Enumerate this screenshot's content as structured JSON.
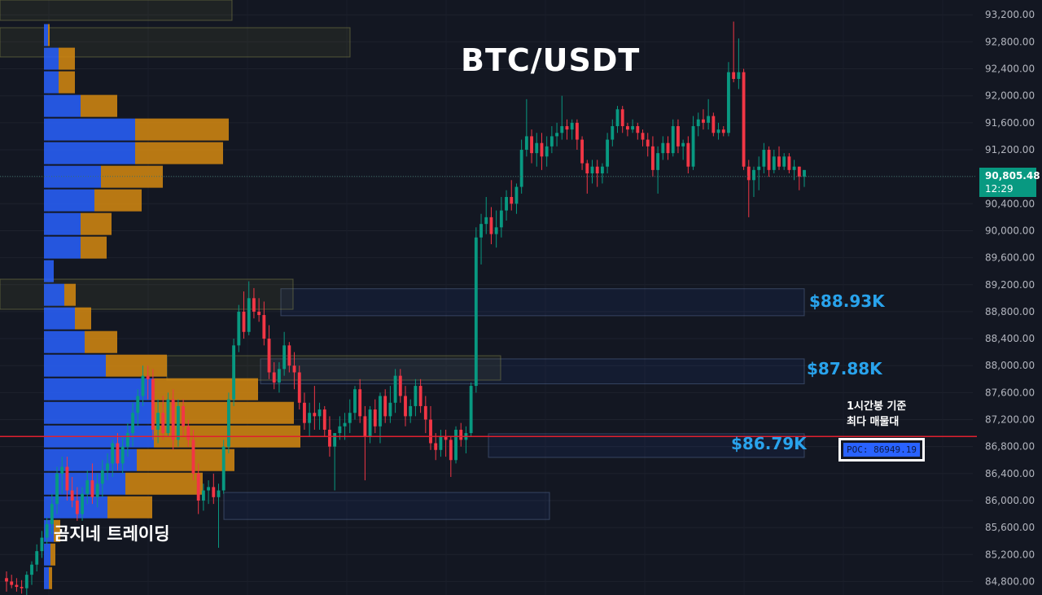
{
  "title": "BTC/USDT",
  "brand": "곰지네 트레이딩",
  "annotation": {
    "line1": "1시간봉 기준",
    "line2": "최다 매물대"
  },
  "poc": {
    "label": "POC: 86949.19",
    "price": 86949.19
  },
  "current_price": {
    "label": "90,805.48",
    "timer": "12:29",
    "price": 90805.48
  },
  "zones": [
    {
      "label": "$88.93K",
      "low": 88740,
      "high": 89140
    },
    {
      "label": "$87.88K",
      "low": 87730,
      "high": 88100
    },
    {
      "label": "$86.79K",
      "low": 86640,
      "high": 86990
    },
    {
      "label": "",
      "low": 85720,
      "high": 86120
    }
  ],
  "colors": {
    "background": "#131722",
    "up": "#089981",
    "down": "#f23645",
    "volume_buy": "#2962ff",
    "volume_sell": "#d68910",
    "zone_label": "#29a3ec",
    "poc_line": "#e0202f"
  },
  "chart_data": {
    "type": "candlestick",
    "title": "BTC/USDT",
    "timeframe_note": "1시간봉 기준",
    "y_axis": {
      "side": "right",
      "ticks": [
        "93,200.00",
        "92,800.00",
        "92,400.00",
        "92,000.00",
        "91,600.00",
        "91,200.00",
        "90,800.00",
        "90,400.00",
        "90,000.00",
        "89,600.00",
        "89,200.00",
        "88,800.00",
        "88,400.00",
        "88,000.00",
        "87,600.00",
        "87,200.00",
        "86,800.00",
        "86,400.00",
        "86,000.00",
        "85,600.00",
        "85,200.00",
        "84,800.00"
      ],
      "range": [
        84600,
        93420
      ]
    },
    "volume_profile": {
      "price_step": 350,
      "bins": [
        {
          "price": 92900,
          "buy": 5,
          "sell": 2
        },
        {
          "price": 92550,
          "buy": 18,
          "sell": 20
        },
        {
          "price": 92200,
          "buy": 18,
          "sell": 20
        },
        {
          "price": 91850,
          "buy": 45,
          "sell": 45
        },
        {
          "price": 91500,
          "buy": 112,
          "sell": 115
        },
        {
          "price": 91150,
          "buy": 112,
          "sell": 108
        },
        {
          "price": 90800,
          "buy": 70,
          "sell": 76
        },
        {
          "price": 90450,
          "buy": 62,
          "sell": 58
        },
        {
          "price": 90100,
          "buy": 45,
          "sell": 38
        },
        {
          "price": 89750,
          "buy": 45,
          "sell": 32
        },
        {
          "price": 89400,
          "buy": 12,
          "sell": 0
        },
        {
          "price": 89050,
          "buy": 25,
          "sell": 14
        },
        {
          "price": 88700,
          "buy": 38,
          "sell": 20
        },
        {
          "price": 88350,
          "buy": 50,
          "sell": 40
        },
        {
          "price": 88000,
          "buy": 76,
          "sell": 75
        },
        {
          "price": 87650,
          "buy": 135,
          "sell": 128
        },
        {
          "price": 87300,
          "buy": 135,
          "sell": 172
        },
        {
          "price": 86950,
          "buy": 135,
          "sell": 180
        },
        {
          "price": 86600,
          "buy": 114,
          "sell": 120
        },
        {
          "price": 86250,
          "buy": 100,
          "sell": 95
        },
        {
          "price": 85900,
          "buy": 78,
          "sell": 55
        },
        {
          "price": 85550,
          "buy": 12,
          "sell": 8
        },
        {
          "price": 85200,
          "buy": 8,
          "sell": 6
        },
        {
          "price": 84850,
          "buy": 6,
          "sell": 4
        }
      ]
    },
    "candles": [
      {
        "o": 84850,
        "h": 84950,
        "l": 84650,
        "c": 84800
      },
      {
        "o": 84800,
        "h": 84900,
        "l": 84700,
        "c": 84750
      },
      {
        "o": 84750,
        "h": 84850,
        "l": 84650,
        "c": 84720
      },
      {
        "o": 84720,
        "h": 84820,
        "l": 84620,
        "c": 84700
      },
      {
        "o": 84700,
        "h": 84950,
        "l": 84600,
        "c": 84900
      },
      {
        "o": 84900,
        "h": 85100,
        "l": 84750,
        "c": 85050
      },
      {
        "o": 85050,
        "h": 85350,
        "l": 84950,
        "c": 85250
      },
      {
        "o": 85250,
        "h": 85550,
        "l": 85150,
        "c": 85450
      },
      {
        "o": 85450,
        "h": 85750,
        "l": 85350,
        "c": 85650
      },
      {
        "o": 85650,
        "h": 86100,
        "l": 85500,
        "c": 85950
      },
      {
        "o": 85950,
        "h": 86500,
        "l": 85800,
        "c": 86400
      },
      {
        "o": 86400,
        "h": 86650,
        "l": 86100,
        "c": 86500
      },
      {
        "o": 86500,
        "h": 86650,
        "l": 86000,
        "c": 86150
      },
      {
        "o": 86150,
        "h": 86350,
        "l": 85900,
        "c": 86000
      },
      {
        "o": 86000,
        "h": 86200,
        "l": 85700,
        "c": 85800
      },
      {
        "o": 85800,
        "h": 86200,
        "l": 85700,
        "c": 86100
      },
      {
        "o": 86100,
        "h": 86450,
        "l": 85950,
        "c": 86300
      },
      {
        "o": 86300,
        "h": 86550,
        "l": 85950,
        "c": 86050
      },
      {
        "o": 86050,
        "h": 86400,
        "l": 85900,
        "c": 86250
      },
      {
        "o": 86250,
        "h": 86600,
        "l": 86050,
        "c": 86450
      },
      {
        "o": 86450,
        "h": 86700,
        "l": 86300,
        "c": 86550
      },
      {
        "o": 86550,
        "h": 86900,
        "l": 86350,
        "c": 86850
      },
      {
        "o": 86850,
        "h": 87000,
        "l": 86450,
        "c": 86550
      },
      {
        "o": 86550,
        "h": 86950,
        "l": 86400,
        "c": 86800
      },
      {
        "o": 86800,
        "h": 87150,
        "l": 86650,
        "c": 87000
      },
      {
        "o": 87000,
        "h": 87450,
        "l": 86800,
        "c": 87300
      },
      {
        "o": 87300,
        "h": 87650,
        "l": 87100,
        "c": 87550
      },
      {
        "o": 87550,
        "h": 88000,
        "l": 87400,
        "c": 87850
      },
      {
        "o": 87850,
        "h": 88000,
        "l": 87500,
        "c": 87800
      },
      {
        "o": 87800,
        "h": 87950,
        "l": 86900,
        "c": 87050
      },
      {
        "o": 87050,
        "h": 87500,
        "l": 86850,
        "c": 87300
      },
      {
        "o": 87300,
        "h": 87550,
        "l": 86900,
        "c": 87000
      },
      {
        "o": 87000,
        "h": 87600,
        "l": 86950,
        "c": 87500
      },
      {
        "o": 87500,
        "h": 87650,
        "l": 86750,
        "c": 86900
      },
      {
        "o": 86900,
        "h": 87500,
        "l": 86800,
        "c": 87400
      },
      {
        "o": 87400,
        "h": 87500,
        "l": 86950,
        "c": 87100
      },
      {
        "o": 87100,
        "h": 87200,
        "l": 86800,
        "c": 86900
      },
      {
        "o": 86900,
        "h": 87050,
        "l": 86300,
        "c": 86400
      },
      {
        "o": 86400,
        "h": 86550,
        "l": 85800,
        "c": 86000
      },
      {
        "o": 86000,
        "h": 86250,
        "l": 85850,
        "c": 86150
      },
      {
        "o": 86150,
        "h": 86300,
        "l": 85950,
        "c": 86200
      },
      {
        "o": 86200,
        "h": 86400,
        "l": 85950,
        "c": 86050
      },
      {
        "o": 86050,
        "h": 86250,
        "l": 85300,
        "c": 86150
      },
      {
        "o": 86150,
        "h": 86900,
        "l": 86100,
        "c": 86800
      },
      {
        "o": 86800,
        "h": 87600,
        "l": 86700,
        "c": 87500
      },
      {
        "o": 87500,
        "h": 88400,
        "l": 87400,
        "c": 88300
      },
      {
        "o": 88300,
        "h": 88900,
        "l": 88200,
        "c": 88800
      },
      {
        "o": 88800,
        "h": 89100,
        "l": 88400,
        "c": 88500
      },
      {
        "o": 88500,
        "h": 89250,
        "l": 88450,
        "c": 89000
      },
      {
        "o": 89000,
        "h": 89150,
        "l": 88700,
        "c": 88800
      },
      {
        "o": 88800,
        "h": 89000,
        "l": 88650,
        "c": 88750
      },
      {
        "o": 88750,
        "h": 88950,
        "l": 88300,
        "c": 88400
      },
      {
        "o": 88400,
        "h": 88600,
        "l": 87800,
        "c": 87900
      },
      {
        "o": 87900,
        "h": 88050,
        "l": 87650,
        "c": 87750
      },
      {
        "o": 87750,
        "h": 88050,
        "l": 87600,
        "c": 87950
      },
      {
        "o": 87950,
        "h": 88500,
        "l": 87850,
        "c": 88300
      },
      {
        "o": 88300,
        "h": 88350,
        "l": 87900,
        "c": 88000
      },
      {
        "o": 88000,
        "h": 88200,
        "l": 87650,
        "c": 87900
      },
      {
        "o": 87900,
        "h": 88000,
        "l": 87350,
        "c": 87450
      },
      {
        "o": 87450,
        "h": 87600,
        "l": 87050,
        "c": 87150
      },
      {
        "o": 87150,
        "h": 87450,
        "l": 86950,
        "c": 87300
      },
      {
        "o": 87300,
        "h": 87700,
        "l": 87050,
        "c": 87250
      },
      {
        "o": 87250,
        "h": 87450,
        "l": 87050,
        "c": 87350
      },
      {
        "o": 87350,
        "h": 87400,
        "l": 86950,
        "c": 87050
      },
      {
        "o": 87050,
        "h": 87250,
        "l": 86650,
        "c": 86800
      },
      {
        "o": 86800,
        "h": 87000,
        "l": 86150,
        "c": 87000
      },
      {
        "o": 87000,
        "h": 87250,
        "l": 86900,
        "c": 87100
      },
      {
        "o": 87100,
        "h": 87300,
        "l": 86900,
        "c": 87150
      },
      {
        "o": 87150,
        "h": 87500,
        "l": 87000,
        "c": 87300
      },
      {
        "o": 87300,
        "h": 87700,
        "l": 87200,
        "c": 87650
      },
      {
        "o": 87650,
        "h": 87800,
        "l": 87150,
        "c": 87250
      },
      {
        "o": 87250,
        "h": 87400,
        "l": 86300,
        "c": 86950
      },
      {
        "o": 86950,
        "h": 87400,
        "l": 86850,
        "c": 87350
      },
      {
        "o": 87350,
        "h": 87500,
        "l": 87000,
        "c": 87100
      },
      {
        "o": 87100,
        "h": 87600,
        "l": 86850,
        "c": 87550
      },
      {
        "o": 87550,
        "h": 87650,
        "l": 87150,
        "c": 87250
      },
      {
        "o": 87250,
        "h": 87700,
        "l": 87150,
        "c": 87450
      },
      {
        "o": 87450,
        "h": 87950,
        "l": 87300,
        "c": 87850
      },
      {
        "o": 87850,
        "h": 87950,
        "l": 87450,
        "c": 87550
      },
      {
        "o": 87550,
        "h": 87700,
        "l": 87100,
        "c": 87250
      },
      {
        "o": 87250,
        "h": 87500,
        "l": 87150,
        "c": 87400
      },
      {
        "o": 87400,
        "h": 87800,
        "l": 87250,
        "c": 87700
      },
      {
        "o": 87700,
        "h": 87800,
        "l": 87300,
        "c": 87400
      },
      {
        "o": 87400,
        "h": 87550,
        "l": 87000,
        "c": 87200
      },
      {
        "o": 87200,
        "h": 87400,
        "l": 86750,
        "c": 86850
      },
      {
        "o": 86850,
        "h": 87000,
        "l": 86600,
        "c": 86750
      },
      {
        "o": 86750,
        "h": 87050,
        "l": 86650,
        "c": 86950
      },
      {
        "o": 86950,
        "h": 87050,
        "l": 86650,
        "c": 86900
      },
      {
        "o": 86900,
        "h": 86950,
        "l": 86350,
        "c": 86600
      },
      {
        "o": 86600,
        "h": 87100,
        "l": 86550,
        "c": 87050
      },
      {
        "o": 87050,
        "h": 87150,
        "l": 86800,
        "c": 86900
      },
      {
        "o": 86900,
        "h": 87100,
        "l": 86700,
        "c": 87000
      },
      {
        "o": 87000,
        "h": 87750,
        "l": 86950,
        "c": 87700
      },
      {
        "o": 87700,
        "h": 90050,
        "l": 87600,
        "c": 89900
      },
      {
        "o": 89900,
        "h": 90250,
        "l": 89500,
        "c": 90100
      },
      {
        "o": 90100,
        "h": 90500,
        "l": 89950,
        "c": 90200
      },
      {
        "o": 90200,
        "h": 90350,
        "l": 89800,
        "c": 89950
      },
      {
        "o": 89950,
        "h": 90300,
        "l": 89750,
        "c": 90050
      },
      {
        "o": 90050,
        "h": 90500,
        "l": 89900,
        "c": 90300
      },
      {
        "o": 90300,
        "h": 90600,
        "l": 90150,
        "c": 90500
      },
      {
        "o": 90500,
        "h": 90750,
        "l": 90300,
        "c": 90400
      },
      {
        "o": 90400,
        "h": 90700,
        "l": 90250,
        "c": 90650
      },
      {
        "o": 90650,
        "h": 91350,
        "l": 90550,
        "c": 91200
      },
      {
        "o": 91200,
        "h": 91950,
        "l": 91100,
        "c": 91400
      },
      {
        "o": 91400,
        "h": 91500,
        "l": 91000,
        "c": 91150
      },
      {
        "o": 91150,
        "h": 91450,
        "l": 90950,
        "c": 91300
      },
      {
        "o": 91300,
        "h": 91450,
        "l": 90900,
        "c": 91100
      },
      {
        "o": 91100,
        "h": 91400,
        "l": 90950,
        "c": 91250
      },
      {
        "o": 91250,
        "h": 91550,
        "l": 91150,
        "c": 91400
      },
      {
        "o": 91400,
        "h": 91600,
        "l": 91250,
        "c": 91450
      },
      {
        "o": 91450,
        "h": 92000,
        "l": 91350,
        "c": 91550
      },
      {
        "o": 91550,
        "h": 91650,
        "l": 91350,
        "c": 91500
      },
      {
        "o": 91500,
        "h": 91650,
        "l": 91350,
        "c": 91600
      },
      {
        "o": 91600,
        "h": 91650,
        "l": 91200,
        "c": 91350
      },
      {
        "o": 91350,
        "h": 91400,
        "l": 90900,
        "c": 91000
      },
      {
        "o": 91000,
        "h": 91050,
        "l": 90550,
        "c": 90850
      },
      {
        "o": 90850,
        "h": 91050,
        "l": 90700,
        "c": 90950
      },
      {
        "o": 90950,
        "h": 91050,
        "l": 90650,
        "c": 90850
      },
      {
        "o": 90850,
        "h": 91000,
        "l": 90700,
        "c": 90950
      },
      {
        "o": 90950,
        "h": 91450,
        "l": 90850,
        "c": 91350
      },
      {
        "o": 91350,
        "h": 91650,
        "l": 91250,
        "c": 91550
      },
      {
        "o": 91550,
        "h": 91850,
        "l": 91450,
        "c": 91800
      },
      {
        "o": 91800,
        "h": 91850,
        "l": 91450,
        "c": 91550
      },
      {
        "o": 91550,
        "h": 91600,
        "l": 91400,
        "c": 91500
      },
      {
        "o": 91500,
        "h": 91650,
        "l": 91450,
        "c": 91550
      },
      {
        "o": 91550,
        "h": 91600,
        "l": 91350,
        "c": 91450
      },
      {
        "o": 91450,
        "h": 91500,
        "l": 91250,
        "c": 91350
      },
      {
        "o": 91350,
        "h": 91450,
        "l": 91100,
        "c": 91250
      },
      {
        "o": 91250,
        "h": 91400,
        "l": 90800,
        "c": 90900
      },
      {
        "o": 90900,
        "h": 91250,
        "l": 90550,
        "c": 91150
      },
      {
        "o": 91150,
        "h": 91400,
        "l": 91050,
        "c": 91300
      },
      {
        "o": 91300,
        "h": 91400,
        "l": 91050,
        "c": 91150
      },
      {
        "o": 91150,
        "h": 91650,
        "l": 91100,
        "c": 91550
      },
      {
        "o": 91550,
        "h": 91650,
        "l": 91150,
        "c": 91250
      },
      {
        "o": 91250,
        "h": 91350,
        "l": 91050,
        "c": 91300
      },
      {
        "o": 91300,
        "h": 91400,
        "l": 90850,
        "c": 90950
      },
      {
        "o": 90950,
        "h": 91700,
        "l": 90900,
        "c": 91550
      },
      {
        "o": 91550,
        "h": 91750,
        "l": 91400,
        "c": 91650
      },
      {
        "o": 91650,
        "h": 91800,
        "l": 91500,
        "c": 91600
      },
      {
        "o": 91600,
        "h": 91950,
        "l": 91500,
        "c": 91700
      },
      {
        "o": 91700,
        "h": 91750,
        "l": 91400,
        "c": 91450
      },
      {
        "o": 91450,
        "h": 91600,
        "l": 91350,
        "c": 91500
      },
      {
        "o": 91500,
        "h": 91550,
        "l": 91400,
        "c": 91450
      },
      {
        "o": 91450,
        "h": 92500,
        "l": 91400,
        "c": 92350
      },
      {
        "o": 92350,
        "h": 93100,
        "l": 92200,
        "c": 92250
      },
      {
        "o": 92250,
        "h": 92850,
        "l": 92100,
        "c": 92350
      },
      {
        "o": 92350,
        "h": 92400,
        "l": 90900,
        "c": 90950
      },
      {
        "o": 90950,
        "h": 91050,
        "l": 90200,
        "c": 90750
      },
      {
        "o": 90750,
        "h": 90950,
        "l": 90500,
        "c": 90900
      },
      {
        "o": 90900,
        "h": 91100,
        "l": 90600,
        "c": 90950
      },
      {
        "o": 90950,
        "h": 91300,
        "l": 90850,
        "c": 91200
      },
      {
        "o": 91200,
        "h": 91250,
        "l": 90800,
        "c": 90900
      },
      {
        "o": 90900,
        "h": 91200,
        "l": 90850,
        "c": 91100
      },
      {
        "o": 91100,
        "h": 91250,
        "l": 90900,
        "c": 90950
      },
      {
        "o": 90950,
        "h": 91150,
        "l": 90900,
        "c": 91100
      },
      {
        "o": 91100,
        "h": 91150,
        "l": 90850,
        "c": 90900
      },
      {
        "o": 90900,
        "h": 91050,
        "l": 90750,
        "c": 90950
      },
      {
        "o": 90950,
        "h": 90950,
        "l": 90600,
        "c": 90800
      },
      {
        "o": 90800,
        "h": 90900,
        "l": 90650,
        "c": 90900
      }
    ]
  }
}
